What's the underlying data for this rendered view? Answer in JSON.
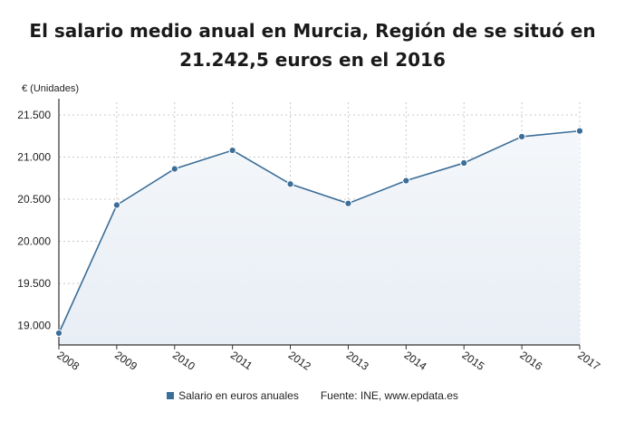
{
  "title_line1": "El salario medio anual en Murcia, Región de se situó en",
  "title_line2": "21.242,5 euros en el 2016",
  "legend": {
    "series_label": "Salario en euros anuales",
    "source": "Fuente: INE, www.epdata.es"
  },
  "colors": {
    "line": "#3b6e98",
    "area": "#e8eef5",
    "grid": "#c8c8c8",
    "axis": "#333333"
  },
  "chart_data": {
    "type": "area",
    "ylabel": "€ (Unidades)",
    "x": [
      "2008",
      "2009",
      "2010",
      "2011",
      "2012",
      "2013",
      "2014",
      "2015",
      "2016",
      "2017"
    ],
    "yticks": [
      19000,
      19500,
      20000,
      20500,
      21000,
      21500
    ],
    "ytick_labels": [
      "19.000",
      "19.500",
      "20.000",
      "20.500",
      "21.000",
      "21.500"
    ],
    "ylim": [
      18770,
      21650
    ],
    "grid": true,
    "legend_position": "bottom",
    "series": [
      {
        "name": "Salario en euros anuales",
        "values": [
          18910,
          20430,
          20860,
          21080,
          20680,
          20450,
          20720,
          20930,
          21242.5,
          21310
        ]
      }
    ]
  }
}
